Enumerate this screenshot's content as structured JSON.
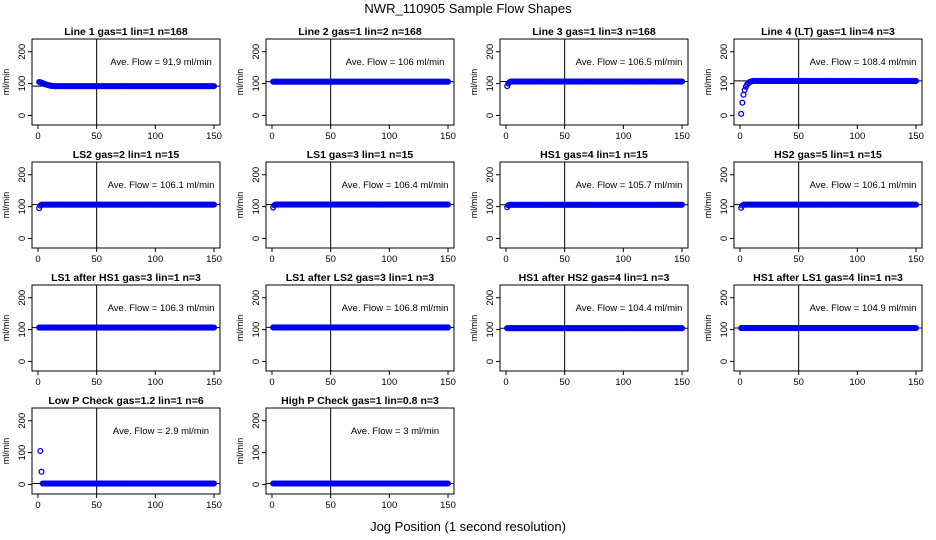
{
  "figure": {
    "title": "NWR_110905  Sample Flow Shapes",
    "xlabel": "Jog Position (1 second resolution)"
  },
  "colors": {
    "points": "#0000ee",
    "axes": "#000000",
    "background": "#ffffff"
  },
  "chart_data": [
    {
      "type": "scatter",
      "title": "Line 1 gas=1 lin=1 n=168",
      "ylabel": "ml/min",
      "annotation": "Ave. Flow =  91.9  ml/min",
      "mean": 91.9,
      "vline": 50,
      "xlim": [
        0,
        150
      ],
      "ylim": [
        0,
        200
      ],
      "xticks": [
        0,
        50,
        100,
        150
      ],
      "yticks": [
        0,
        100,
        200
      ],
      "x": [
        1,
        2,
        3,
        4,
        5,
        6,
        7,
        8,
        9,
        10,
        11,
        12,
        13
      ],
      "y": [
        105,
        104,
        103,
        101,
        100,
        98,
        97,
        96,
        95,
        94,
        93,
        93,
        92
      ],
      "rest_x_range": [
        14,
        150
      ],
      "rest_y": 92
    },
    {
      "type": "scatter",
      "title": "Line 2 gas=1 lin=2 n=168",
      "ylabel": "ml/min",
      "annotation": "Ave. Flow =  106  ml/min",
      "mean": 106,
      "vline": 50,
      "xlim": [
        0,
        150
      ],
      "ylim": [
        0,
        200
      ],
      "xticks": [
        0,
        50,
        100,
        150
      ],
      "yticks": [
        0,
        100,
        200
      ],
      "x": [],
      "y": [],
      "rest_x_range": [
        1,
        150
      ],
      "rest_y": 106
    },
    {
      "type": "scatter",
      "title": "Line 3 gas=1 lin=3 n=168",
      "ylabel": "ml/min",
      "annotation": "Ave. Flow =  106.5  ml/min",
      "mean": 106.5,
      "vline": 50,
      "xlim": [
        0,
        150
      ],
      "ylim": [
        0,
        200
      ],
      "xticks": [
        0,
        50,
        100,
        150
      ],
      "yticks": [
        0,
        100,
        200
      ],
      "x": [
        1,
        2,
        3
      ],
      "y": [
        92,
        100,
        104
      ],
      "rest_x_range": [
        4,
        150
      ],
      "rest_y": 106.5
    },
    {
      "type": "scatter",
      "title": "Line 4 (LT) gas=1 lin=4 n=3",
      "ylabel": "ml/min",
      "annotation": "Ave. Flow =  108.4  ml/min",
      "mean": 108.4,
      "vline": 50,
      "xlim": [
        0,
        150
      ],
      "ylim": [
        0,
        200
      ],
      "xticks": [
        0,
        50,
        100,
        150
      ],
      "yticks": [
        0,
        100,
        200
      ],
      "x": [
        1,
        2,
        3,
        4,
        5,
        6,
        7,
        8,
        9,
        10
      ],
      "y": [
        5,
        40,
        65,
        80,
        90,
        97,
        101,
        104,
        106,
        107
      ],
      "rest_x_range": [
        11,
        150
      ],
      "rest_y": 108.4
    },
    {
      "type": "scatter",
      "title": "LS2 gas=2 lin=1 n=15",
      "ylabel": "ml/min",
      "annotation": "Ave. Flow =  106.1  ml/min",
      "mean": 106.1,
      "vline": 50,
      "xlim": [
        0,
        150
      ],
      "ylim": [
        0,
        200
      ],
      "xticks": [
        0,
        50,
        100,
        150
      ],
      "yticks": [
        0,
        100,
        200
      ],
      "x": [
        1,
        2
      ],
      "y": [
        95,
        103
      ],
      "rest_x_range": [
        3,
        150
      ],
      "rest_y": 106.1
    },
    {
      "type": "scatter",
      "title": "LS1 gas=3 lin=1 n=15",
      "ylabel": "ml/min",
      "annotation": "Ave. Flow =  106.4  ml/min",
      "mean": 106.4,
      "vline": 50,
      "xlim": [
        0,
        150
      ],
      "ylim": [
        0,
        200
      ],
      "xticks": [
        0,
        50,
        100,
        150
      ],
      "yticks": [
        0,
        100,
        200
      ],
      "x": [
        1,
        2
      ],
      "y": [
        97,
        104
      ],
      "rest_x_range": [
        3,
        150
      ],
      "rest_y": 106.4
    },
    {
      "type": "scatter",
      "title": "HS1 gas=4 lin=1 n=15",
      "ylabel": "ml/min",
      "annotation": "Ave. Flow =  105.7  ml/min",
      "mean": 105.7,
      "vline": 50,
      "xlim": [
        0,
        150
      ],
      "ylim": [
        0,
        200
      ],
      "xticks": [
        0,
        50,
        100,
        150
      ],
      "yticks": [
        0,
        100,
        200
      ],
      "x": [
        1,
        2
      ],
      "y": [
        98,
        104
      ],
      "rest_x_range": [
        3,
        150
      ],
      "rest_y": 105.7
    },
    {
      "type": "scatter",
      "title": "HS2 gas=5 lin=1 n=15",
      "ylabel": "ml/min",
      "annotation": "Ave. Flow =  106.1  ml/min",
      "mean": 106.1,
      "vline": 50,
      "xlim": [
        0,
        150
      ],
      "ylim": [
        0,
        200
      ],
      "xticks": [
        0,
        50,
        100,
        150
      ],
      "yticks": [
        0,
        100,
        200
      ],
      "x": [
        1,
        2
      ],
      "y": [
        96,
        103
      ],
      "rest_x_range": [
        3,
        150
      ],
      "rest_y": 106.1
    },
    {
      "type": "scatter",
      "title": "LS1 after HS1 gas=3 lin=1 n=3",
      "ylabel": "ml/min",
      "annotation": "Ave. Flow =  106.3  ml/min",
      "mean": 106.3,
      "vline": 50,
      "xlim": [
        0,
        150
      ],
      "ylim": [
        0,
        200
      ],
      "xticks": [
        0,
        50,
        100,
        150
      ],
      "yticks": [
        0,
        100,
        200
      ],
      "x": [],
      "y": [],
      "rest_x_range": [
        1,
        150
      ],
      "rest_y": 106.3
    },
    {
      "type": "scatter",
      "title": "LS1 after LS2 gas=3 lin=1 n=3",
      "ylabel": "ml/min",
      "annotation": "Ave. Flow =  106.8  ml/min",
      "mean": 106.8,
      "vline": 50,
      "xlim": [
        0,
        150
      ],
      "ylim": [
        0,
        200
      ],
      "xticks": [
        0,
        50,
        100,
        150
      ],
      "yticks": [
        0,
        100,
        200
      ],
      "x": [],
      "y": [],
      "rest_x_range": [
        1,
        150
      ],
      "rest_y": 106.8
    },
    {
      "type": "scatter",
      "title": "HS1 after HS2 gas=4 lin=1 n=3",
      "ylabel": "ml/min",
      "annotation": "Ave. Flow =  104.4  ml/min",
      "mean": 104.4,
      "vline": 50,
      "xlim": [
        0,
        150
      ],
      "ylim": [
        0,
        200
      ],
      "xticks": [
        0,
        50,
        100,
        150
      ],
      "yticks": [
        0,
        100,
        200
      ],
      "x": [],
      "y": [],
      "rest_x_range": [
        1,
        150
      ],
      "rest_y": 104.4
    },
    {
      "type": "scatter",
      "title": "HS1 after LS1 gas=4 lin=1 n=3",
      "ylabel": "ml/min",
      "annotation": "Ave. Flow =  104.9  ml/min",
      "mean": 104.9,
      "vline": 50,
      "xlim": [
        0,
        150
      ],
      "ylim": [
        0,
        200
      ],
      "xticks": [
        0,
        50,
        100,
        150
      ],
      "yticks": [
        0,
        100,
        200
      ],
      "x": [],
      "y": [],
      "rest_x_range": [
        1,
        150
      ],
      "rest_y": 104.9
    },
    {
      "type": "scatter",
      "title": "Low P Check gas=1.2 lin=1 n=6",
      "ylabel": "ml/min",
      "annotation": "Ave. Flow =  2.9  ml/min",
      "mean": 2.9,
      "vline": 50,
      "xlim": [
        0,
        150
      ],
      "ylim": [
        0,
        200
      ],
      "xticks": [
        0,
        50,
        100,
        150
      ],
      "yticks": [
        0,
        100,
        200
      ],
      "x": [
        2,
        3
      ],
      "y": [
        105,
        40
      ],
      "rest_x_range": [
        4,
        150
      ],
      "rest_y": 2.9
    },
    {
      "type": "scatter",
      "title": "High P Check gas=1 lin=0.8 n=3",
      "ylabel": "ml/min",
      "annotation": "Ave. Flow =  3  ml/min",
      "mean": 3,
      "vline": 50,
      "xlim": [
        0,
        150
      ],
      "ylim": [
        0,
        200
      ],
      "xticks": [
        0,
        50,
        100,
        150
      ],
      "yticks": [
        0,
        100,
        200
      ],
      "x": [],
      "y": [],
      "rest_x_range": [
        1,
        150
      ],
      "rest_y": 3
    }
  ]
}
